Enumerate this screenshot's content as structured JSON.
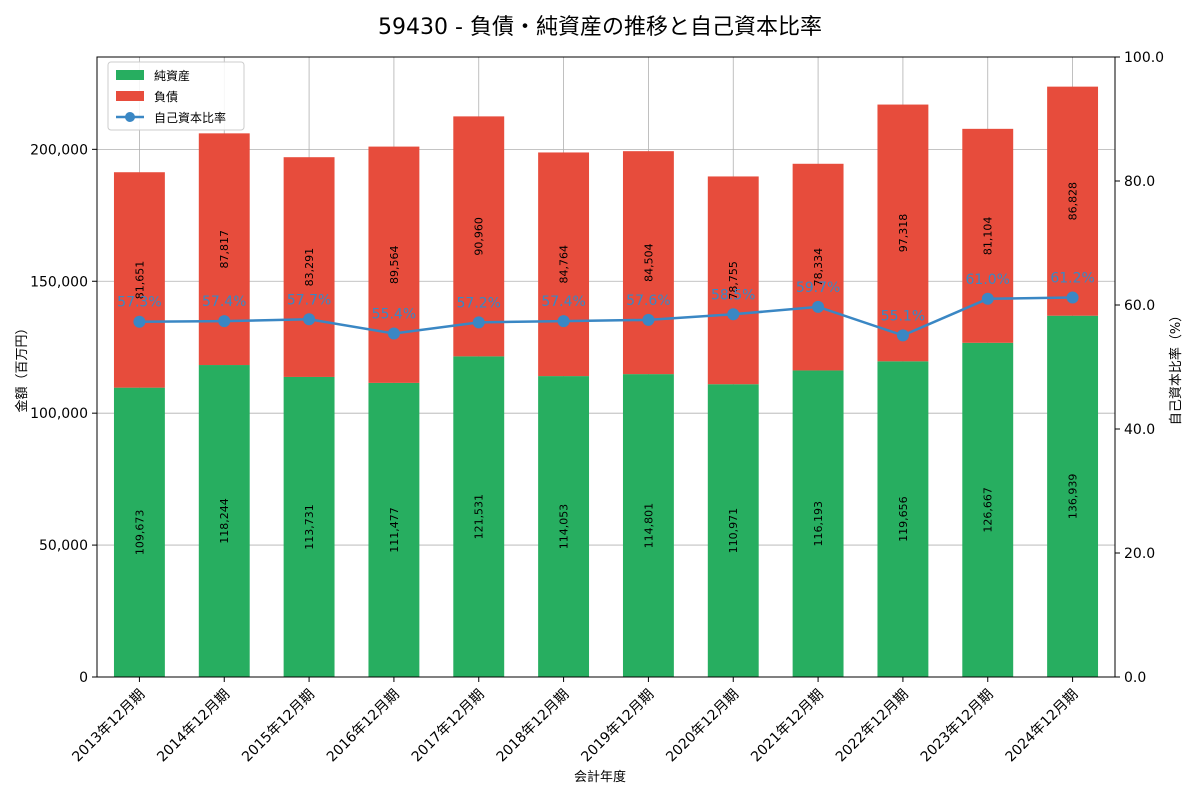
{
  "chart_data": {
    "type": "bar",
    "title": "59430 - 負債・純資産の推移と自己資本比率",
    "xlabel": "会計年度",
    "ylabel": "金額（百万円）",
    "y2label": "自己資本比率（%）",
    "ylim": [
      0,
      235000
    ],
    "y2lim": [
      0,
      100
    ],
    "yticks": [
      0,
      50000,
      100000,
      150000,
      200000
    ],
    "ytick_labels": [
      "0",
      "50,000",
      "100,000",
      "150,000",
      "200,000"
    ],
    "y2ticks": [
      0,
      20,
      40,
      60,
      80,
      100
    ],
    "y2tick_labels": [
      "0.0",
      "20.0",
      "40.0",
      "60.0",
      "80.0",
      "100.0"
    ],
    "stacked": true,
    "grid": true,
    "legend_position": "top-left",
    "categories": [
      "2013年12月期",
      "2014年12月期",
      "2015年12月期",
      "2016年12月期",
      "2017年12月期",
      "2018年12月期",
      "2019年12月期",
      "2020年12月期",
      "2021年12月期",
      "2022年12月期",
      "2023年12月期",
      "2024年12月期"
    ],
    "series": [
      {
        "name": "純資産",
        "color": "#27ae60",
        "values": [
          109673,
          118244,
          113731,
          111477,
          121531,
          114053,
          114801,
          110971,
          116193,
          119656,
          126667,
          136939
        ],
        "value_labels": [
          "109,673",
          "118,244",
          "113,731",
          "111,477",
          "121,531",
          "114,053",
          "114,801",
          "110,971",
          "116,193",
          "119,656",
          "126,667",
          "136,939"
        ]
      },
      {
        "name": "負債",
        "color": "#e74c3c",
        "values": [
          81651,
          87817,
          83291,
          89564,
          90960,
          84764,
          84504,
          78755,
          78334,
          97318,
          81104,
          86828
        ],
        "value_labels": [
          "81,651",
          "87,817",
          "83,291",
          "89,564",
          "90,960",
          "84,764",
          "84,504",
          "78,755",
          "78,334",
          "97,318",
          "81,104",
          "86,828"
        ]
      }
    ],
    "line_series": {
      "name": "自己資本比率",
      "color": "#3a87c4",
      "axis": "right",
      "values": [
        57.3,
        57.4,
        57.7,
        55.4,
        57.2,
        57.4,
        57.6,
        58.5,
        59.7,
        55.1,
        61.0,
        61.2
      ],
      "value_labels": [
        "57.3%",
        "57.4%",
        "57.7%",
        "55.4%",
        "57.2%",
        "57.4%",
        "57.6%",
        "58.5%",
        "59.7%",
        "55.1%",
        "61.0%",
        "61.2%"
      ]
    }
  }
}
